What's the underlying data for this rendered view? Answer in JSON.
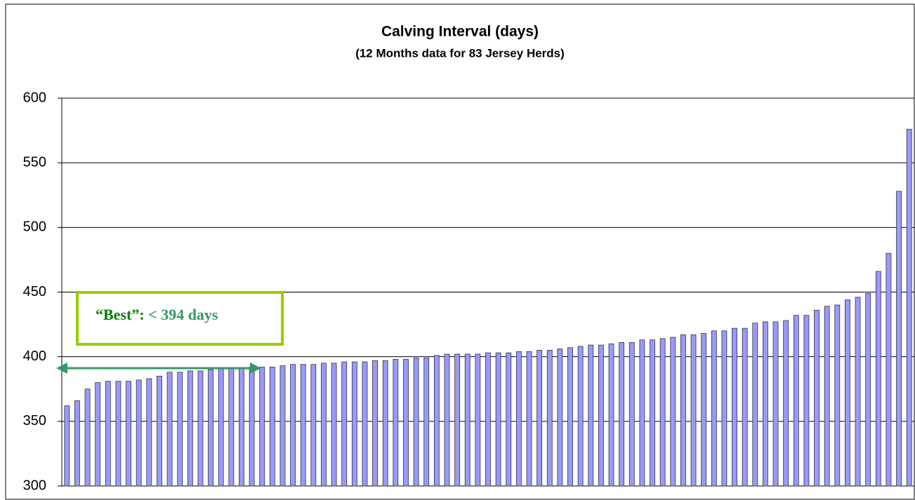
{
  "chart_data": {
    "type": "bar",
    "title": "Calving Interval (days)",
    "subtitle": "(12 Months data for 83 Jersey Herds)",
    "annotation": {
      "label": "“Best”:",
      "text": "< 394 days"
    },
    "values": [
      362,
      366,
      375,
      380,
      381,
      381,
      381,
      382,
      383,
      385,
      388,
      388,
      389,
      389,
      390,
      391,
      391,
      391,
      392,
      392,
      392,
      393,
      394,
      394,
      394,
      395,
      395,
      396,
      396,
      396,
      397,
      397,
      398,
      398,
      399,
      399,
      401,
      402,
      402,
      402,
      402,
      403,
      403,
      403,
      404,
      404,
      405,
      405,
      406,
      407,
      408,
      409,
      409,
      410,
      411,
      411,
      413,
      413,
      414,
      415,
      417,
      417,
      418,
      420,
      420,
      422,
      422,
      426,
      427,
      427,
      428,
      432,
      432,
      436,
      439,
      440,
      444,
      446,
      449,
      466,
      480,
      528,
      576
    ],
    "color": "#9999ff",
    "ylim": [
      300,
      600
    ],
    "yticks": [
      300,
      350,
      400,
      450,
      500,
      550,
      600
    ],
    "grid": true
  }
}
